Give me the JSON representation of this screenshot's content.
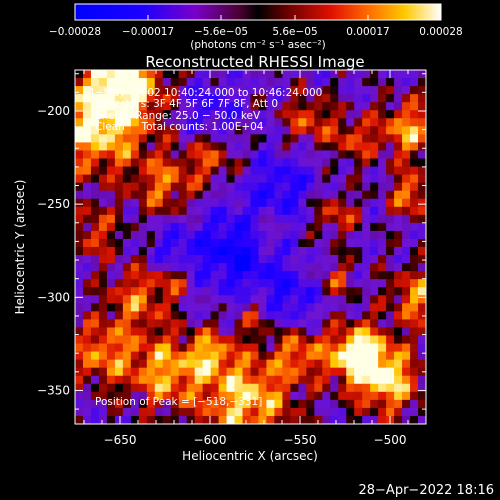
{
  "chart_data": {
    "type": "heatmap",
    "title": "Reconstructed RHESSI Image",
    "xlabel": "Heliocentric X (arcsec)",
    "ylabel": "Heliocentric Y (arcsec)",
    "xlim": [
      -675,
      -480
    ],
    "ylim": [
      -368,
      -178
    ],
    "xticks": [
      -650,
      -600,
      -550,
      -500
    ],
    "yticks": [
      -200,
      -250,
      -300,
      -350
    ],
    "xtick_labels": [
      "−650",
      "−600",
      "−550",
      "−500"
    ],
    "ytick_labels": [
      "−200",
      "−250",
      "−300",
      "−350"
    ],
    "colorbar": {
      "colormap": "red-temperature",
      "range": [
        -0.00028,
        0.00028
      ],
      "tick_labels": [
        "−0.00028",
        "−0.00017",
        "−5.6e−05",
        "5.6e−05",
        "0.00017",
        "0.00028"
      ],
      "unit_label": "(photons cm⁻² s⁻¹ asec⁻²)"
    },
    "annotations": [
      "4−May−2002 10:40:24.000 to 10:46:24.000",
      "Detectors: 3F 4F 5F 6F 7F 8F, Att 0",
      "Energy Range: 25.0 − 50.0 keV",
      "Clean     Total counts: 1.00E+04"
    ],
    "peak_label": "Position of Peak = [−518,−331]",
    "peak": [
      -518,
      -331
    ]
  },
  "footer_timestamp": "28−Apr−2022 18:16",
  "colors": {
    "background": "#000000",
    "foreground": "#ffffff"
  }
}
